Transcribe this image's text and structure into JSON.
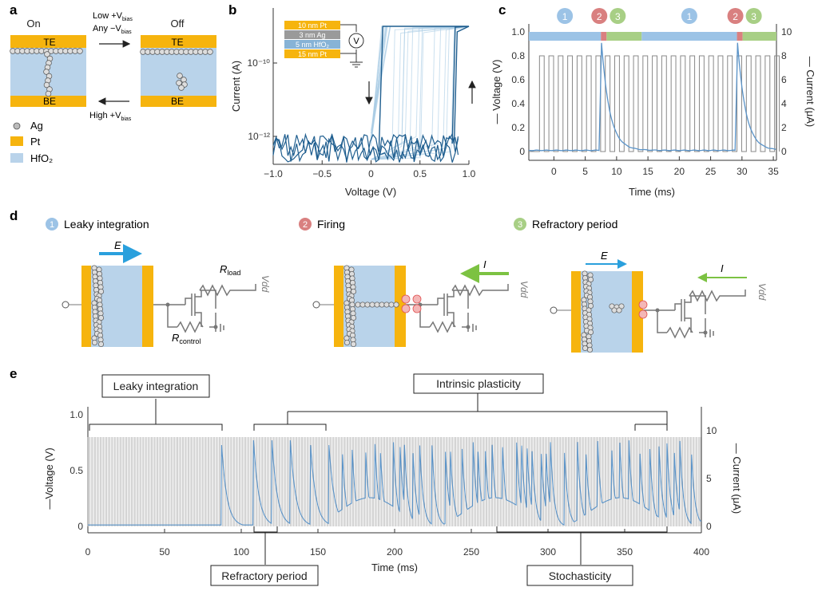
{
  "panels": {
    "a": "a",
    "b": "b",
    "c": "c",
    "d": "d",
    "e": "e"
  },
  "panel_a": {
    "state_on": "On",
    "state_off": "Off",
    "te": "TE",
    "be": "BE",
    "arrow_top_line1": "Low +V",
    "arrow_top_sub1": "bias",
    "arrow_top_line2": "Any −V",
    "arrow_top_sub2": "bias",
    "arrow_bottom": "High +V",
    "arrow_bottom_sub": "bias",
    "legend": [
      {
        "label": "Ag",
        "color": "#bbbbbb"
      },
      {
        "label": "Pt",
        "color": "#f6b40e"
      },
      {
        "label": "HfO₂",
        "color": "#b9d3ea"
      }
    ]
  },
  "stack_layers": [
    "10 nm Pt",
    "3 nm Ag",
    "5 nm HfO₂",
    "15 nm Pt"
  ],
  "panel_d": {
    "phase1_num": "1",
    "phase1_label": "Leaky integration",
    "phase2_num": "2",
    "phase2_label": "Firing",
    "phase3_num": "3",
    "phase3_label": "Refractory period",
    "field": "E",
    "current": "I",
    "rload": "R",
    "rload_sub": "load",
    "rcontrol": "R",
    "rcontrol_sub": "control",
    "vdd": "V",
    "vdd_sub": "dd"
  },
  "chart_data": [
    {
      "panel": "b",
      "type": "line",
      "xlabel": "Voltage (V)",
      "ylabel": "Current (A)",
      "xlim": [
        -1.0,
        1.0
      ],
      "xticks": [
        "−1.0",
        "−0.5",
        "0",
        "0.5",
        "1.0"
      ],
      "ylog": true,
      "yticks": [
        "10⁻¹⁰",
        "10⁻¹²"
      ],
      "colors": {
        "main": "#1f5e8f",
        "faint": "#a9cce4"
      }
    },
    {
      "panel": "c",
      "type": "line",
      "xlabel": "Time (ms)",
      "ylabel_left": "— Voltage (V)",
      "ylabel_right": "— Current (μA)",
      "xlim": [
        -4,
        35.5
      ],
      "xticks": [
        "0",
        "5",
        "10",
        "15",
        "20",
        "25",
        "30",
        "35"
      ],
      "ylim_left": [
        0,
        1.0
      ],
      "yticks_left": [
        "0",
        "0.2",
        "0.4",
        "0.6",
        "0.8",
        "1.0"
      ],
      "ylim_right": [
        0,
        10
      ],
      "yticks_right": [
        "0",
        "2",
        "4",
        "6",
        "8",
        "10"
      ],
      "pulse_amplitude_v": 0.8,
      "spike_times_ms": [
        7.6,
        29.3
      ],
      "spike_peak_uA": 9.0,
      "phase_bar": [
        {
          "phase": "1",
          "start": -4,
          "end": 7.5
        },
        {
          "phase": "2",
          "start": 7.5,
          "end": 8.4
        },
        {
          "phase": "3",
          "start": 8.4,
          "end": 14
        },
        {
          "phase": "1",
          "start": 14,
          "end": 29.2
        },
        {
          "phase": "2",
          "start": 29.2,
          "end": 30.1
        },
        {
          "phase": "3",
          "start": 30.1,
          "end": 35.5
        }
      ],
      "phase_colors": {
        "1": "#9cc3e6",
        "2": "#d98080",
        "3": "#a8cf85"
      }
    },
    {
      "panel": "e",
      "type": "line",
      "xlabel": "Time (ms)",
      "ylabel_left": "—Voltage (V)",
      "ylabel_right": "— Current (μA)",
      "xlim": [
        0,
        400
      ],
      "xticks": [
        "0",
        "50",
        "100",
        "150",
        "200",
        "250",
        "300",
        "350",
        "400"
      ],
      "ylim_left": [
        0,
        1.0
      ],
      "yticks_left": [
        "0",
        "0.5",
        "1.0"
      ],
      "ylim_right": [
        0,
        10
      ],
      "yticks_right": [
        "0",
        "5",
        "10"
      ],
      "pulse_amplitude_v": 0.8,
      "annotations": {
        "leaky": "Leaky integration",
        "intrinsic": "Intrinsic plasticity",
        "refractory": "Refractory period",
        "stochastic": "Stochasticity"
      }
    }
  ]
}
